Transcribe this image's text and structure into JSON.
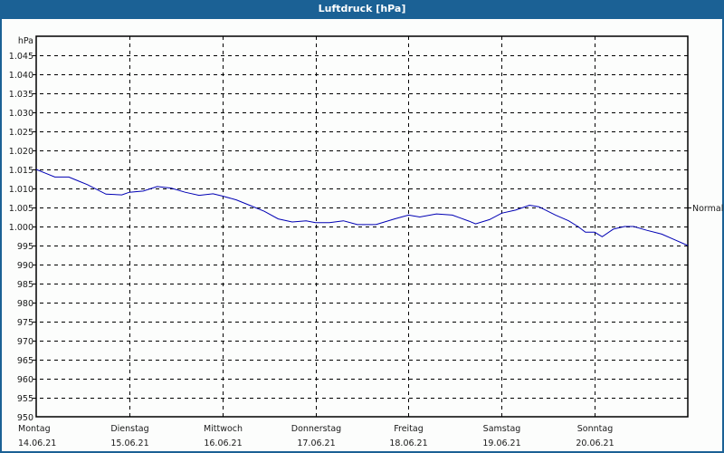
{
  "window": {
    "title": "Luftdruck [hPa]",
    "header_color": "#1b6195"
  },
  "chart_data": {
    "type": "line",
    "title": "Luftdruck [hPa]",
    "xlabel": "",
    "ylabel": "hPa",
    "ylim": [
      950,
      1050
    ],
    "yticks": [
      950,
      955,
      960,
      965,
      970,
      975,
      980,
      985,
      990,
      995,
      1000,
      1005,
      1010,
      1015,
      1020,
      1025,
      1030,
      1035,
      1040,
      1045
    ],
    "ytick_labels": [
      "950",
      "955",
      "960",
      "965",
      "970",
      "975",
      "980",
      "985",
      "990",
      "995",
      "1.000",
      "1.005",
      "1.010",
      "1.015",
      "1.020",
      "1.025",
      "1.030",
      "1.035",
      "1.040",
      "1.045"
    ],
    "x_categories": [
      {
        "day": "Montag",
        "date": "14.06.21"
      },
      {
        "day": "Dienstag",
        "date": "15.06.21"
      },
      {
        "day": "Mittwoch",
        "date": "16.06.21"
      },
      {
        "day": "Donnerstag",
        "date": "17.06.21"
      },
      {
        "day": "Freitag",
        "date": "18.06.21"
      },
      {
        "day": "Samstag",
        "date": "19.06.21"
      },
      {
        "day": "Sonntag",
        "date": "20.06.21"
      }
    ],
    "grid": true,
    "reference_line": {
      "label": "Normal",
      "value": 1005
    },
    "series": [
      {
        "name": "Luftdruck",
        "color": "#0000b4",
        "x_days": [
          0,
          0.1,
          0.2,
          0.35,
          0.45,
          0.55,
          0.75,
          0.92,
          1.0,
          1.15,
          1.3,
          1.45,
          1.6,
          1.75,
          1.9,
          2.0,
          2.15,
          2.3,
          2.45,
          2.6,
          2.75,
          2.9,
          3.0,
          3.15,
          3.3,
          3.45,
          3.65,
          3.85,
          4.0,
          4.12,
          4.3,
          4.47,
          4.65,
          4.72,
          4.87,
          5.0,
          5.15,
          5.3,
          5.4,
          5.58,
          5.72,
          5.82,
          5.9,
          6.0,
          6.08,
          6.2,
          6.32,
          6.42,
          6.56,
          6.72,
          6.86,
          7.0
        ],
        "values": [
          1015,
          1014,
          1013,
          1013,
          1012,
          1011,
          1008.5,
          1008.3,
          1009,
          1009.3,
          1010.5,
          1010.1,
          1009,
          1008.2,
          1008.6,
          1008,
          1007,
          1005.5,
          1004,
          1002,
          1001.2,
          1001.5,
          1001,
          1001,
          1001.5,
          1000.5,
          1000.5,
          1002,
          1003,
          1002.5,
          1003.3,
          1003,
          1001.4,
          1000.7,
          1001.8,
          1003.5,
          1004.3,
          1005.6,
          1005.2,
          1003,
          1001.5,
          1000,
          998.5,
          998.5,
          997.3,
          999.3,
          1000,
          1000,
          999,
          998,
          996.5,
          995
        ]
      }
    ]
  }
}
